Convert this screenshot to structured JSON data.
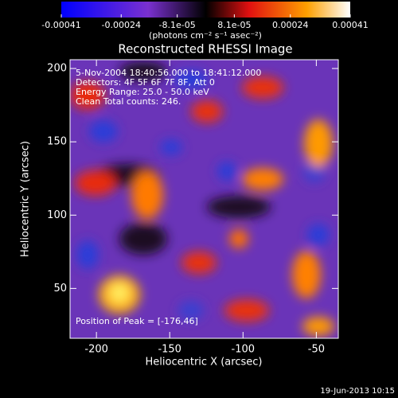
{
  "chart_data": {
    "type": "image",
    "title": "Reconstructed RHESSI Image",
    "colorbar": {
      "label": "(photons cm⁻² s⁻¹ asec⁻²)",
      "clim": [
        -0.00041,
        0.00041
      ],
      "ticks": [
        -0.00041,
        -0.00024,
        {
          "value": -8.1e-05,
          "label": "-8.1e-05"
        },
        {
          "value": 8.1e-05,
          "label": "8.1e-05"
        },
        0.00024,
        0.00041
      ]
    },
    "xlabel": "Heliocentric X (arcsec)",
    "ylabel": "Heliocentric Y (arcsec)",
    "xlim": [
      -218,
      -35
    ],
    "ylim": [
      16,
      206
    ],
    "xticks": [
      -200,
      -150,
      -100,
      -50
    ],
    "yticks": [
      50,
      100,
      150,
      200
    ],
    "annotations": [
      "5-Nov-2004 18:40:56.000 to 18:41:12.000",
      "Detectors: 4F 5F 6F 7F 8F, Att 0",
      "Energy Range: 25.0 - 50.0 keV",
      "Clean    Total counts: 246."
    ],
    "peak_label": "Position of Peak = [-176,46]",
    "timestamp": "19-Jun-2013 10:15"
  }
}
